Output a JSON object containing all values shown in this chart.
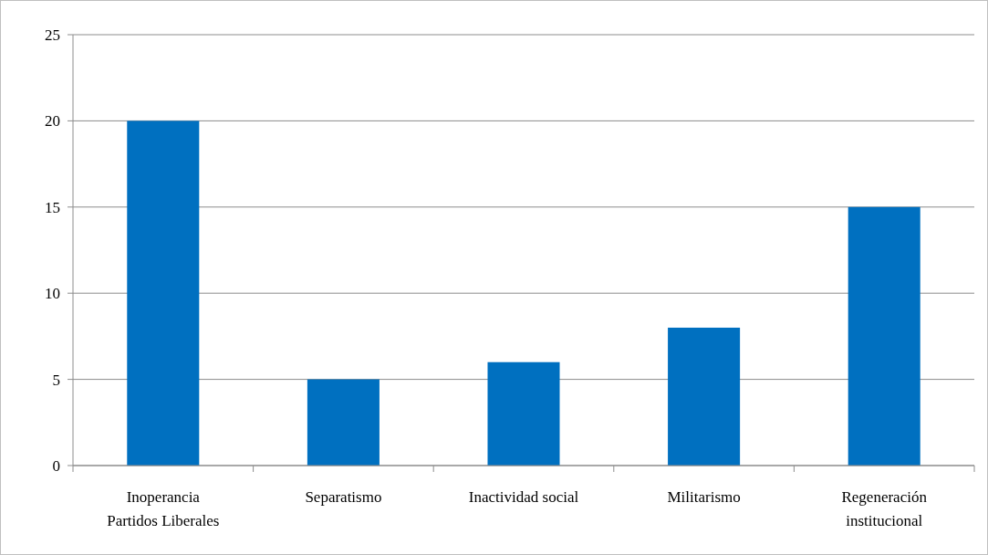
{
  "chart_data": {
    "type": "bar",
    "categories": [
      "Inoperancia Partidos Liberales",
      "Separatismo",
      "Inactividad social",
      "Militarismo",
      "Regeneración institucional"
    ],
    "values": [
      20,
      5,
      6,
      8,
      15
    ],
    "color": "#0070c0",
    "ylim": [
      0,
      25
    ],
    "yticks": [
      0,
      5,
      10,
      15,
      20,
      25
    ],
    "grid": "y"
  }
}
